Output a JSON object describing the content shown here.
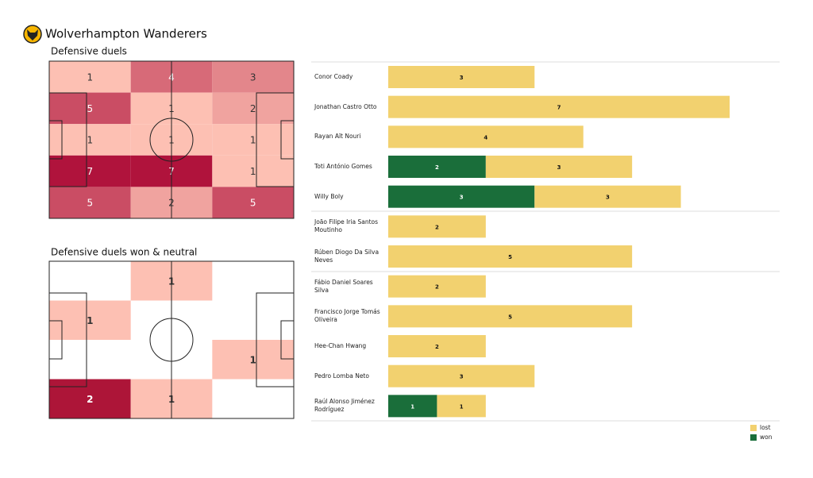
{
  "header": {
    "title": "Wolverhampton Wanderers"
  },
  "chart_data": [
    {
      "type": "heatmap",
      "title": "Defensive duels",
      "values": [
        [
          1,
          4,
          3
        ],
        [
          5,
          1,
          2
        ],
        [
          1,
          1,
          1
        ],
        [
          7,
          7,
          1
        ],
        [
          5,
          2,
          5
        ]
      ],
      "colormap": [
        "#fdc0b3",
        "#b0133c"
      ]
    },
    {
      "type": "heatmap",
      "title": "Defensive duels won & neutral",
      "values": [
        [
          null,
          1,
          null
        ],
        [
          1,
          null,
          null
        ],
        [
          null,
          null,
          1
        ],
        [
          2,
          1,
          null
        ]
      ],
      "colormap": [
        "#fdc0b3",
        "#ad1538"
      ]
    },
    {
      "type": "bar",
      "orientation": "horizontal",
      "stacked": true,
      "categories": [
        "Conor  Coady",
        "Jonathan Castro Otto",
        "Rayan Aït Nouri",
        "Toti António Gomes",
        "Willy Boly",
        "João Filipe Iria Santos Moutinho",
        "Rúben Diogo Da Silva Neves",
        "Fábio Daniel Soares Silva",
        "Francisco Jorge Tomás Oliveira",
        "Hee-Chan Hwang",
        "Pedro Lomba Neto",
        "Raúl Alonso Jiménez Rodríguez"
      ],
      "series": [
        {
          "name": "won",
          "color": "#1a6e3a",
          "values": [
            0,
            0,
            0,
            2,
            3,
            0,
            0,
            0,
            0,
            0,
            0,
            1
          ]
        },
        {
          "name": "lost",
          "color": "#f2d16f",
          "values": [
            3,
            7,
            4,
            3,
            3,
            2,
            5,
            2,
            5,
            2,
            3,
            1
          ]
        }
      ],
      "xlim": [
        0,
        7
      ],
      "legend": "lower right"
    }
  ]
}
